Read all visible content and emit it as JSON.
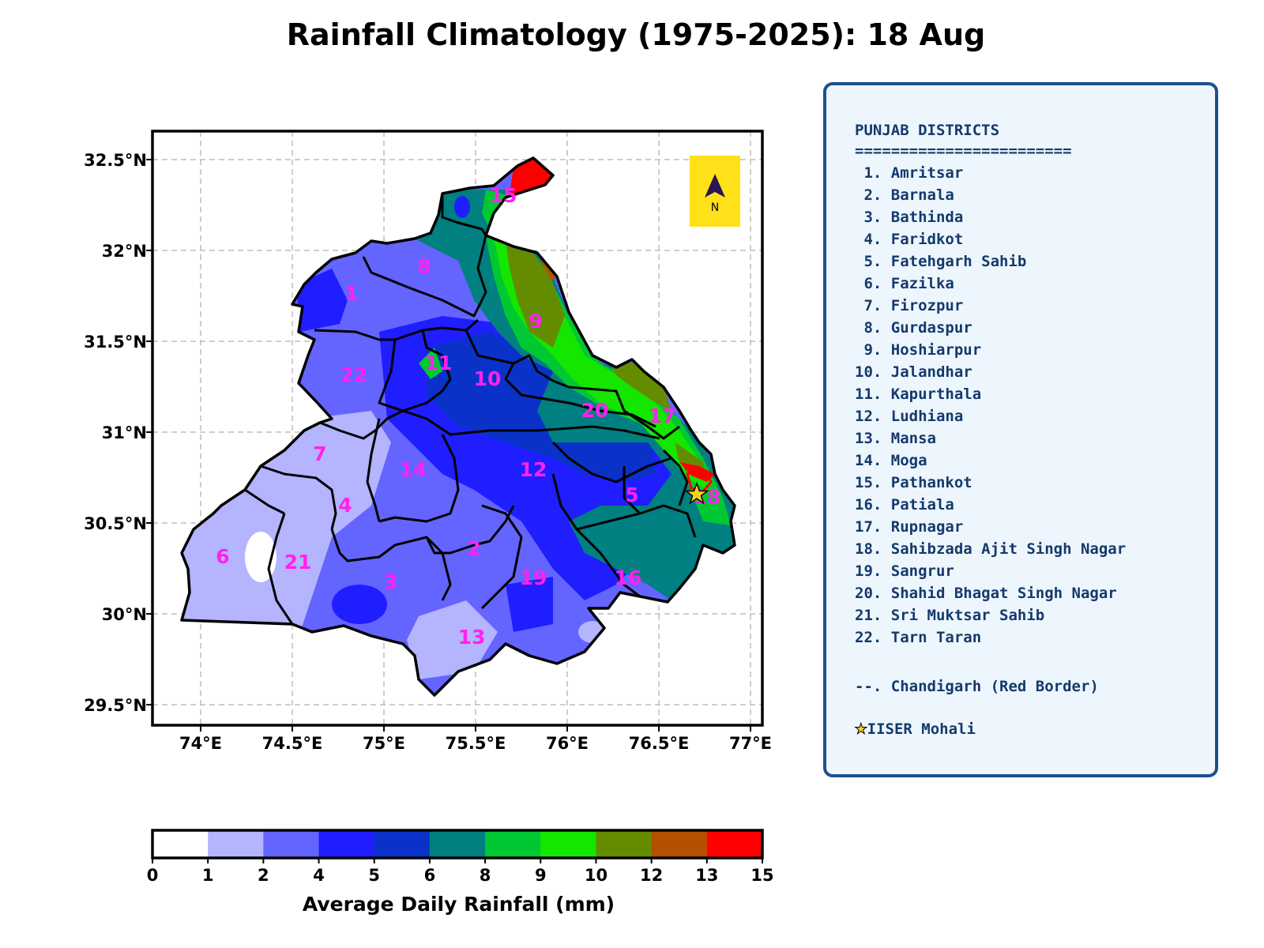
{
  "title": "Rainfall Climatology (1975-2025): 18 Aug",
  "map": {
    "lat_ticks": [
      "32.5°N",
      "32°N",
      "31.5°N",
      "31°N",
      "30.5°N",
      "30°N",
      "29.5°N"
    ],
    "lon_ticks": [
      "74°E",
      "74.5°E",
      "75°E",
      "75.5°E",
      "76°E",
      "76.5°E",
      "77°E"
    ],
    "north_arrow_label": "N",
    "district_numbers": [
      "1",
      "2",
      "3",
      "4",
      "5",
      "6",
      "7",
      "8",
      "9",
      "10",
      "11",
      "12",
      "13",
      "14",
      "15",
      "16",
      "17",
      "18",
      "19",
      "20",
      "21",
      "22"
    ]
  },
  "legend": {
    "title": "PUNJAB DISTRICTS",
    "separator": "========================",
    "items": [
      " 1. Amritsar",
      " 2. Barnala",
      " 3. Bathinda",
      " 4. Faridkot",
      " 5. Fatehgarh Sahib",
      " 6. Fazilka",
      " 7. Firozpur",
      " 8. Gurdaspur",
      " 9. Hoshiarpur",
      "10. Jalandhar",
      "11. Kapurthala",
      "12. Ludhiana",
      "13. Mansa",
      "14. Moga",
      "15. Pathankot",
      "16. Patiala",
      "17. Rupnagar",
      "18. Sahibzada Ajit Singh Nagar",
      "19. Sangrur",
      "20. Shahid Bhagat Singh Nagar",
      "21. Sri Muktsar Sahib",
      "22. Tarn Taran"
    ],
    "note": "--. Chandigarh (Red Border)",
    "marker_label": "IISER Mohali",
    "marker_icon": "star-icon"
  },
  "colorbar": {
    "label": "Average Daily Rainfall (mm)",
    "bounds": [
      0,
      1,
      2,
      4,
      5,
      6,
      8,
      9,
      10,
      12,
      13,
      15
    ],
    "colors": [
      "#ffffff",
      "#b4b4ff",
      "#6464ff",
      "#1e1eff",
      "#0a32c8",
      "#008080",
      "#00c832",
      "#14e600",
      "#648c00",
      "#b45000",
      "#ff0000"
    ]
  }
}
